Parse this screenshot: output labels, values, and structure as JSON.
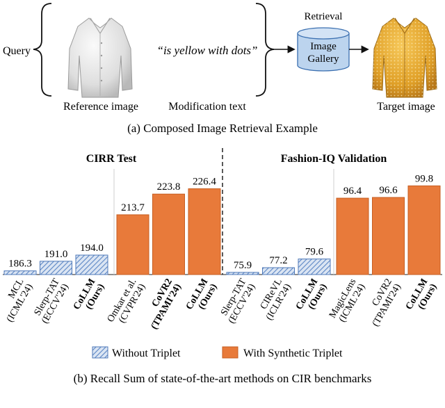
{
  "panel_a": {
    "query_label": "Query",
    "modification_text": "“is yellow with dots”",
    "retrieval_label": "Retrieval",
    "gallery_line1": "Image",
    "gallery_line2": "Gallery",
    "reference_caption": "Reference image",
    "modification_caption": "Modification text",
    "target_caption": "Target image",
    "caption": "(a) Composed Image Retrieval Example",
    "colors": {
      "reference_shirt": "#e6e6e6",
      "target_shirt": "#e6a92a",
      "gallery_fill": "#bcd4ee",
      "gallery_stroke": "#3a6fb0"
    }
  },
  "panel_b": {
    "caption": "(b) Recall Sum of state-of-the-art methods on CIR benchmarks",
    "legend": {
      "without": "Without Triplet",
      "with": "With Synthetic Triplet"
    }
  },
  "chart_data": [
    {
      "type": "bar",
      "title": "CIRR Test",
      "categories": [
        [
          "MCL",
          "(ICML'24)"
        ],
        [
          "Slerp-TAT",
          "(ECCV'24)"
        ],
        [
          "CoLLM",
          "(Ours)"
        ],
        [
          "Omkar et al.",
          "(CVPR'24)"
        ],
        [
          "CoVR2",
          "(TPAMI'24)"
        ],
        [
          "CoLLM",
          "(Ours)"
        ]
      ],
      "bold": [
        false,
        false,
        true,
        false,
        true,
        true
      ],
      "values": [
        186.3,
        191.0,
        194.0,
        213.7,
        223.8,
        226.4
      ],
      "labels": [
        "186.3",
        "191.0",
        "194.0",
        "213.7",
        "223.8",
        "226.4"
      ],
      "group": [
        "without",
        "without",
        "without",
        "with",
        "with",
        "with"
      ],
      "ylim": [
        184.5,
        231
      ]
    },
    {
      "type": "bar",
      "title": "Fashion-IQ Validation",
      "categories": [
        [
          "Slerp-TAT",
          "(ECCV'24)"
        ],
        [
          "CIReVL",
          "(ICLR'24)"
        ],
        [
          "CoLLM",
          "(Ours)"
        ],
        [
          "MagicLens",
          "(ICML'24)"
        ],
        [
          "CoVR2",
          "(TPAMI'24)"
        ],
        [
          "CoLLM",
          "(Ours)"
        ]
      ],
      "bold": [
        false,
        false,
        true,
        false,
        false,
        true
      ],
      "values": [
        75.9,
        77.2,
        79.6,
        96.4,
        96.6,
        99.8
      ],
      "labels": [
        "75.9",
        "77.2",
        "79.6",
        "96.4",
        "96.6",
        "99.8"
      ],
      "group": [
        "without",
        "without",
        "without",
        "with",
        "with",
        "with"
      ],
      "ylim": [
        75.3,
        101.6
      ]
    }
  ],
  "colors": {
    "hatch_fill": "#dbe5f3",
    "hatch_line": "#5b86c5",
    "hatch_stroke": "#4f79b8",
    "orange": "#e87a3a",
    "orange_stroke": "#c65e22"
  }
}
